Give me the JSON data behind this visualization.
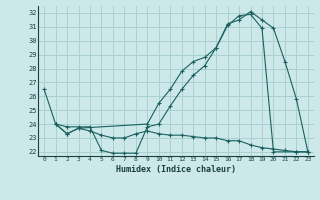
{
  "xlabel": "Humidex (Indice chaleur)",
  "bg_color": "#cce8e8",
  "line_color": "#1a6060",
  "grid_color": "#aad0d0",
  "xlim": [
    -0.5,
    23.5
  ],
  "ylim": [
    21.7,
    32.5
  ],
  "xticks": [
    0,
    1,
    2,
    3,
    4,
    5,
    6,
    7,
    8,
    9,
    10,
    11,
    12,
    13,
    14,
    15,
    16,
    17,
    18,
    19,
    20,
    21,
    22,
    23
  ],
  "yticks": [
    22,
    23,
    24,
    25,
    26,
    27,
    28,
    29,
    30,
    31,
    32
  ],
  "line1_x": [
    0,
    1,
    2,
    3,
    4,
    5,
    6,
    7,
    8,
    9,
    10,
    11,
    12,
    13,
    14,
    15,
    16,
    17,
    18,
    19,
    20,
    22,
    23
  ],
  "line1_y": [
    26.5,
    24.0,
    23.8,
    23.8,
    23.8,
    22.1,
    21.9,
    21.9,
    21.9,
    23.8,
    24.0,
    25.3,
    26.5,
    27.5,
    28.2,
    29.5,
    31.1,
    31.8,
    31.9,
    30.9,
    22.0,
    22.0,
    22.0
  ],
  "line2_x": [
    1,
    2,
    3,
    4,
    5,
    6,
    7,
    8,
    9,
    10,
    11,
    12,
    13,
    14,
    15,
    16,
    17,
    18,
    19,
    20,
    21,
    22,
    23
  ],
  "line2_y": [
    24.0,
    23.3,
    23.7,
    23.5,
    23.2,
    23.0,
    23.0,
    23.3,
    23.5,
    23.3,
    23.2,
    23.2,
    23.1,
    23.0,
    23.0,
    22.8,
    22.8,
    22.5,
    22.3,
    22.2,
    22.1,
    22.0,
    22.0
  ],
  "line3_x": [
    1,
    2,
    3,
    9,
    10,
    11,
    12,
    13,
    14,
    15,
    16,
    17,
    18,
    19,
    20,
    21,
    22,
    23
  ],
  "line3_y": [
    24.0,
    23.3,
    23.7,
    24.0,
    25.5,
    26.5,
    27.8,
    28.5,
    28.8,
    29.5,
    31.2,
    31.5,
    32.1,
    31.5,
    30.9,
    28.5,
    25.8,
    22.0
  ]
}
